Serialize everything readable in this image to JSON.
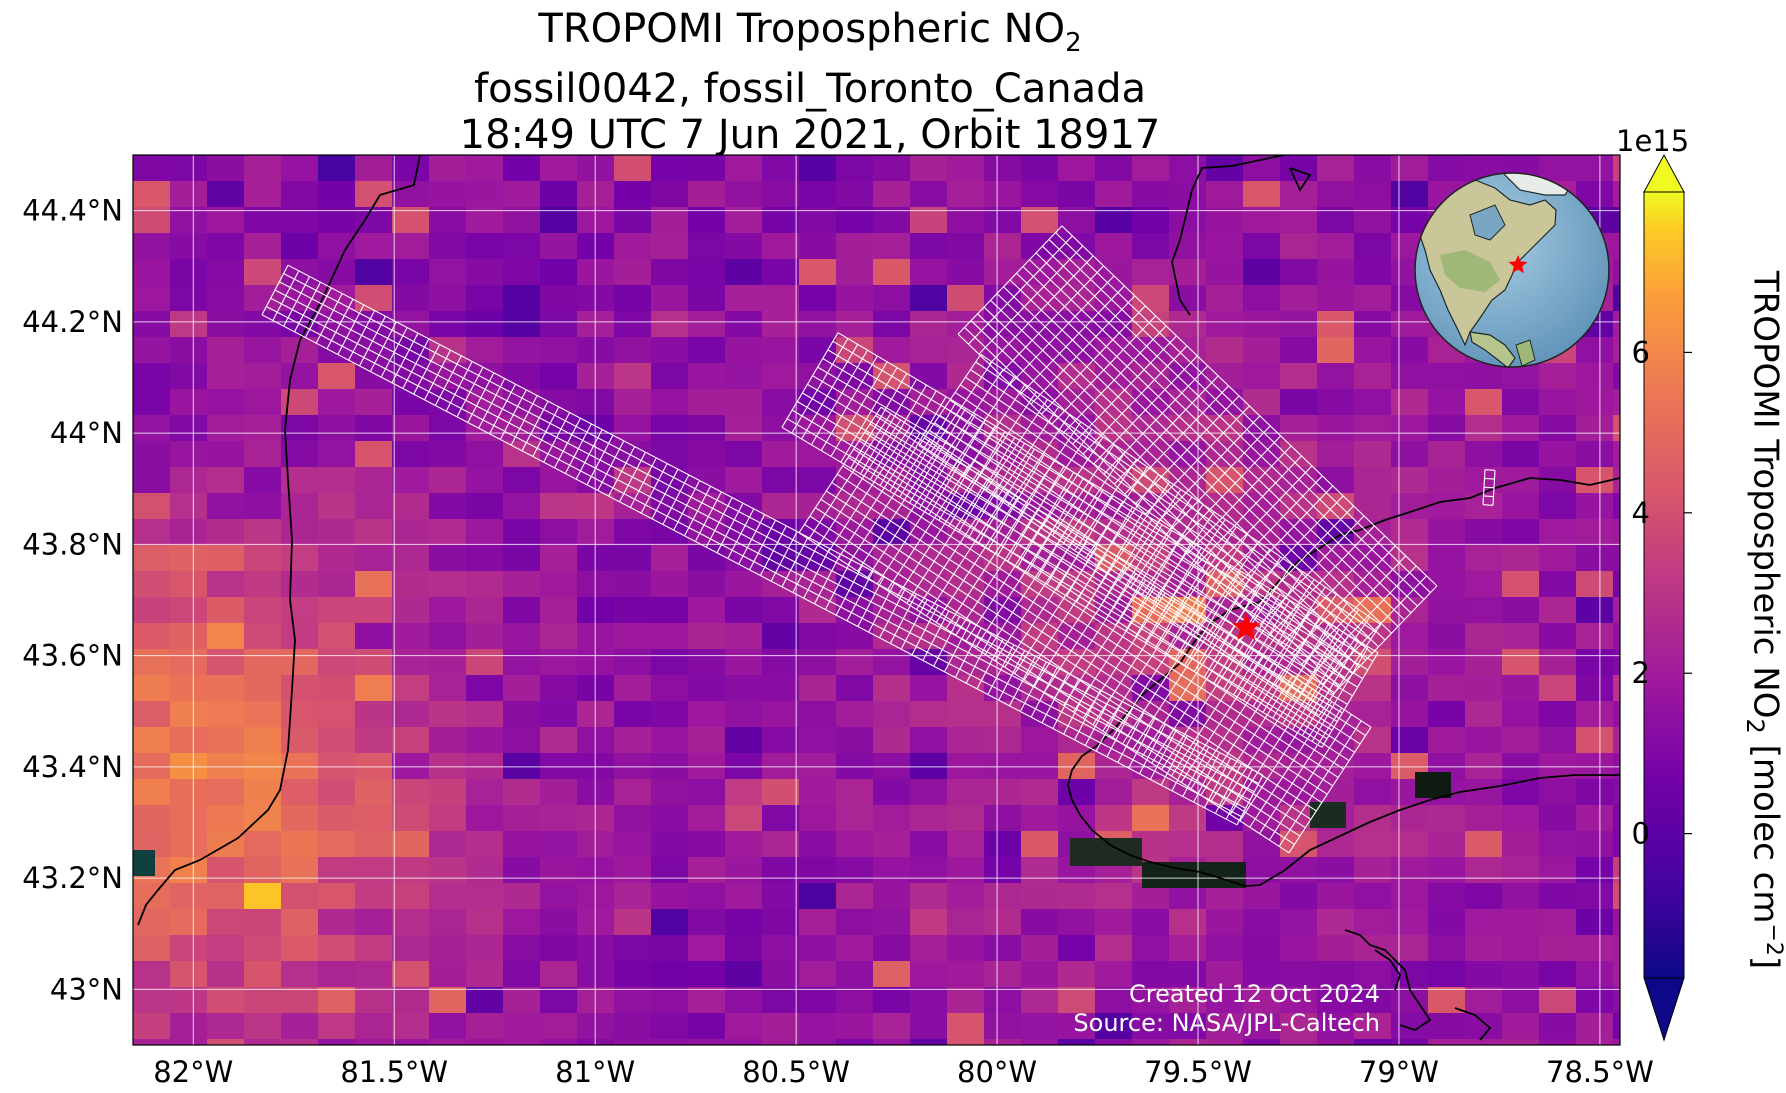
{
  "title": {
    "line1_main": "TROPOMI Tropospheric NO",
    "line1_sub": "2",
    "line2": "fossil0042, fossil_Toronto_Canada",
    "line3": "18:49 UTC 7 Jun 2021, Orbit 18917"
  },
  "map": {
    "lon_range": [
      -82.15,
      -78.45
    ],
    "lat_range": [
      42.9,
      44.5
    ],
    "x_ticks": [
      {
        "value": -82.0,
        "label": "82°W"
      },
      {
        "value": -81.5,
        "label": "81.5°W"
      },
      {
        "value": -81.0,
        "label": "81°W"
      },
      {
        "value": -80.5,
        "label": "80.5°W"
      },
      {
        "value": -80.0,
        "label": "80°W"
      },
      {
        "value": -79.5,
        "label": "79.5°W"
      },
      {
        "value": -79.0,
        "label": "79°W"
      },
      {
        "value": -78.5,
        "label": "78.5°W"
      }
    ],
    "y_ticks": [
      {
        "value": 43.0,
        "label": "43°N"
      },
      {
        "value": 43.2,
        "label": "43.2°N"
      },
      {
        "value": 43.4,
        "label": "43.4°N"
      },
      {
        "value": 43.6,
        "label": "43.6°N"
      },
      {
        "value": 43.8,
        "label": "43.8°N"
      },
      {
        "value": 44.0,
        "label": "44°N"
      },
      {
        "value": 44.2,
        "label": "44.2°N"
      },
      {
        "value": 44.4,
        "label": "44.4°N"
      }
    ],
    "gridlines": true,
    "site_marker": {
      "lon": -79.38,
      "lat": 43.65,
      "color": "#ff0000",
      "shape": "star-icon"
    },
    "background_colormap": "plasma",
    "inset": "globe-inset-north-america"
  },
  "colorbar": {
    "label_main": "TROPOMI Tropospheric NO",
    "label_sub": "2",
    "label_unit": " [molec cm",
    "label_exp": "−2",
    "label_end": "]",
    "scale_exponent": "1e15",
    "range": [
      -1.8,
      8.0
    ],
    "ticks": [
      {
        "value": 0,
        "label": "0"
      },
      {
        "value": 2,
        "label": "2"
      },
      {
        "value": 4,
        "label": "4"
      },
      {
        "value": 6,
        "label": "6"
      }
    ],
    "extend": "both",
    "colormap": "plasma"
  },
  "credit": {
    "line1": "Created 12 Oct 2024",
    "line2": "Source: NASA/JPL-Caltech"
  }
}
